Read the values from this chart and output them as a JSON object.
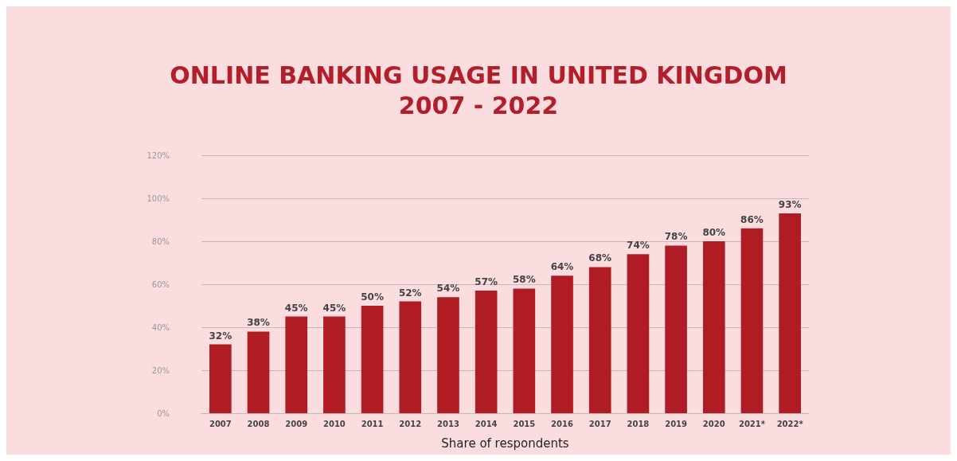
{
  "chart_data": {
    "type": "bar",
    "title": "ONLINE BANKING USAGE IN UNITED KINGDOM\n2007 - 2022",
    "xlabel": "Share of respondents",
    "categories": [
      "2007",
      "2008",
      "2009",
      "2010",
      "2011",
      "2012",
      "2013",
      "2014",
      "2015",
      "2016",
      "2017",
      "2018",
      "2019",
      "2020",
      "2021*",
      "2022*"
    ],
    "values": [
      32,
      38,
      45,
      45,
      50,
      52,
      54,
      57,
      58,
      64,
      68,
      74,
      78,
      80,
      86,
      93
    ],
    "value_labels": [
      "32%",
      "38%",
      "45%",
      "45%",
      "50%",
      "52%",
      "54%",
      "57%",
      "58%",
      "64%",
      "68%",
      "74%",
      "78%",
      "80%",
      "86%",
      "93%"
    ],
    "color": "#b01c24",
    "ylim": [
      0,
      120
    ],
    "yticks": [
      {
        "value": 0,
        "label": "0%"
      },
      {
        "value": 20,
        "label": "20%"
      },
      {
        "value": 40,
        "label": "40%"
      },
      {
        "value": 60,
        "label": "60%"
      },
      {
        "value": 80,
        "label": "80%"
      },
      {
        "value": 100,
        "label": "100%"
      },
      {
        "value": 120,
        "label": "120%"
      }
    ],
    "grid": "y"
  }
}
